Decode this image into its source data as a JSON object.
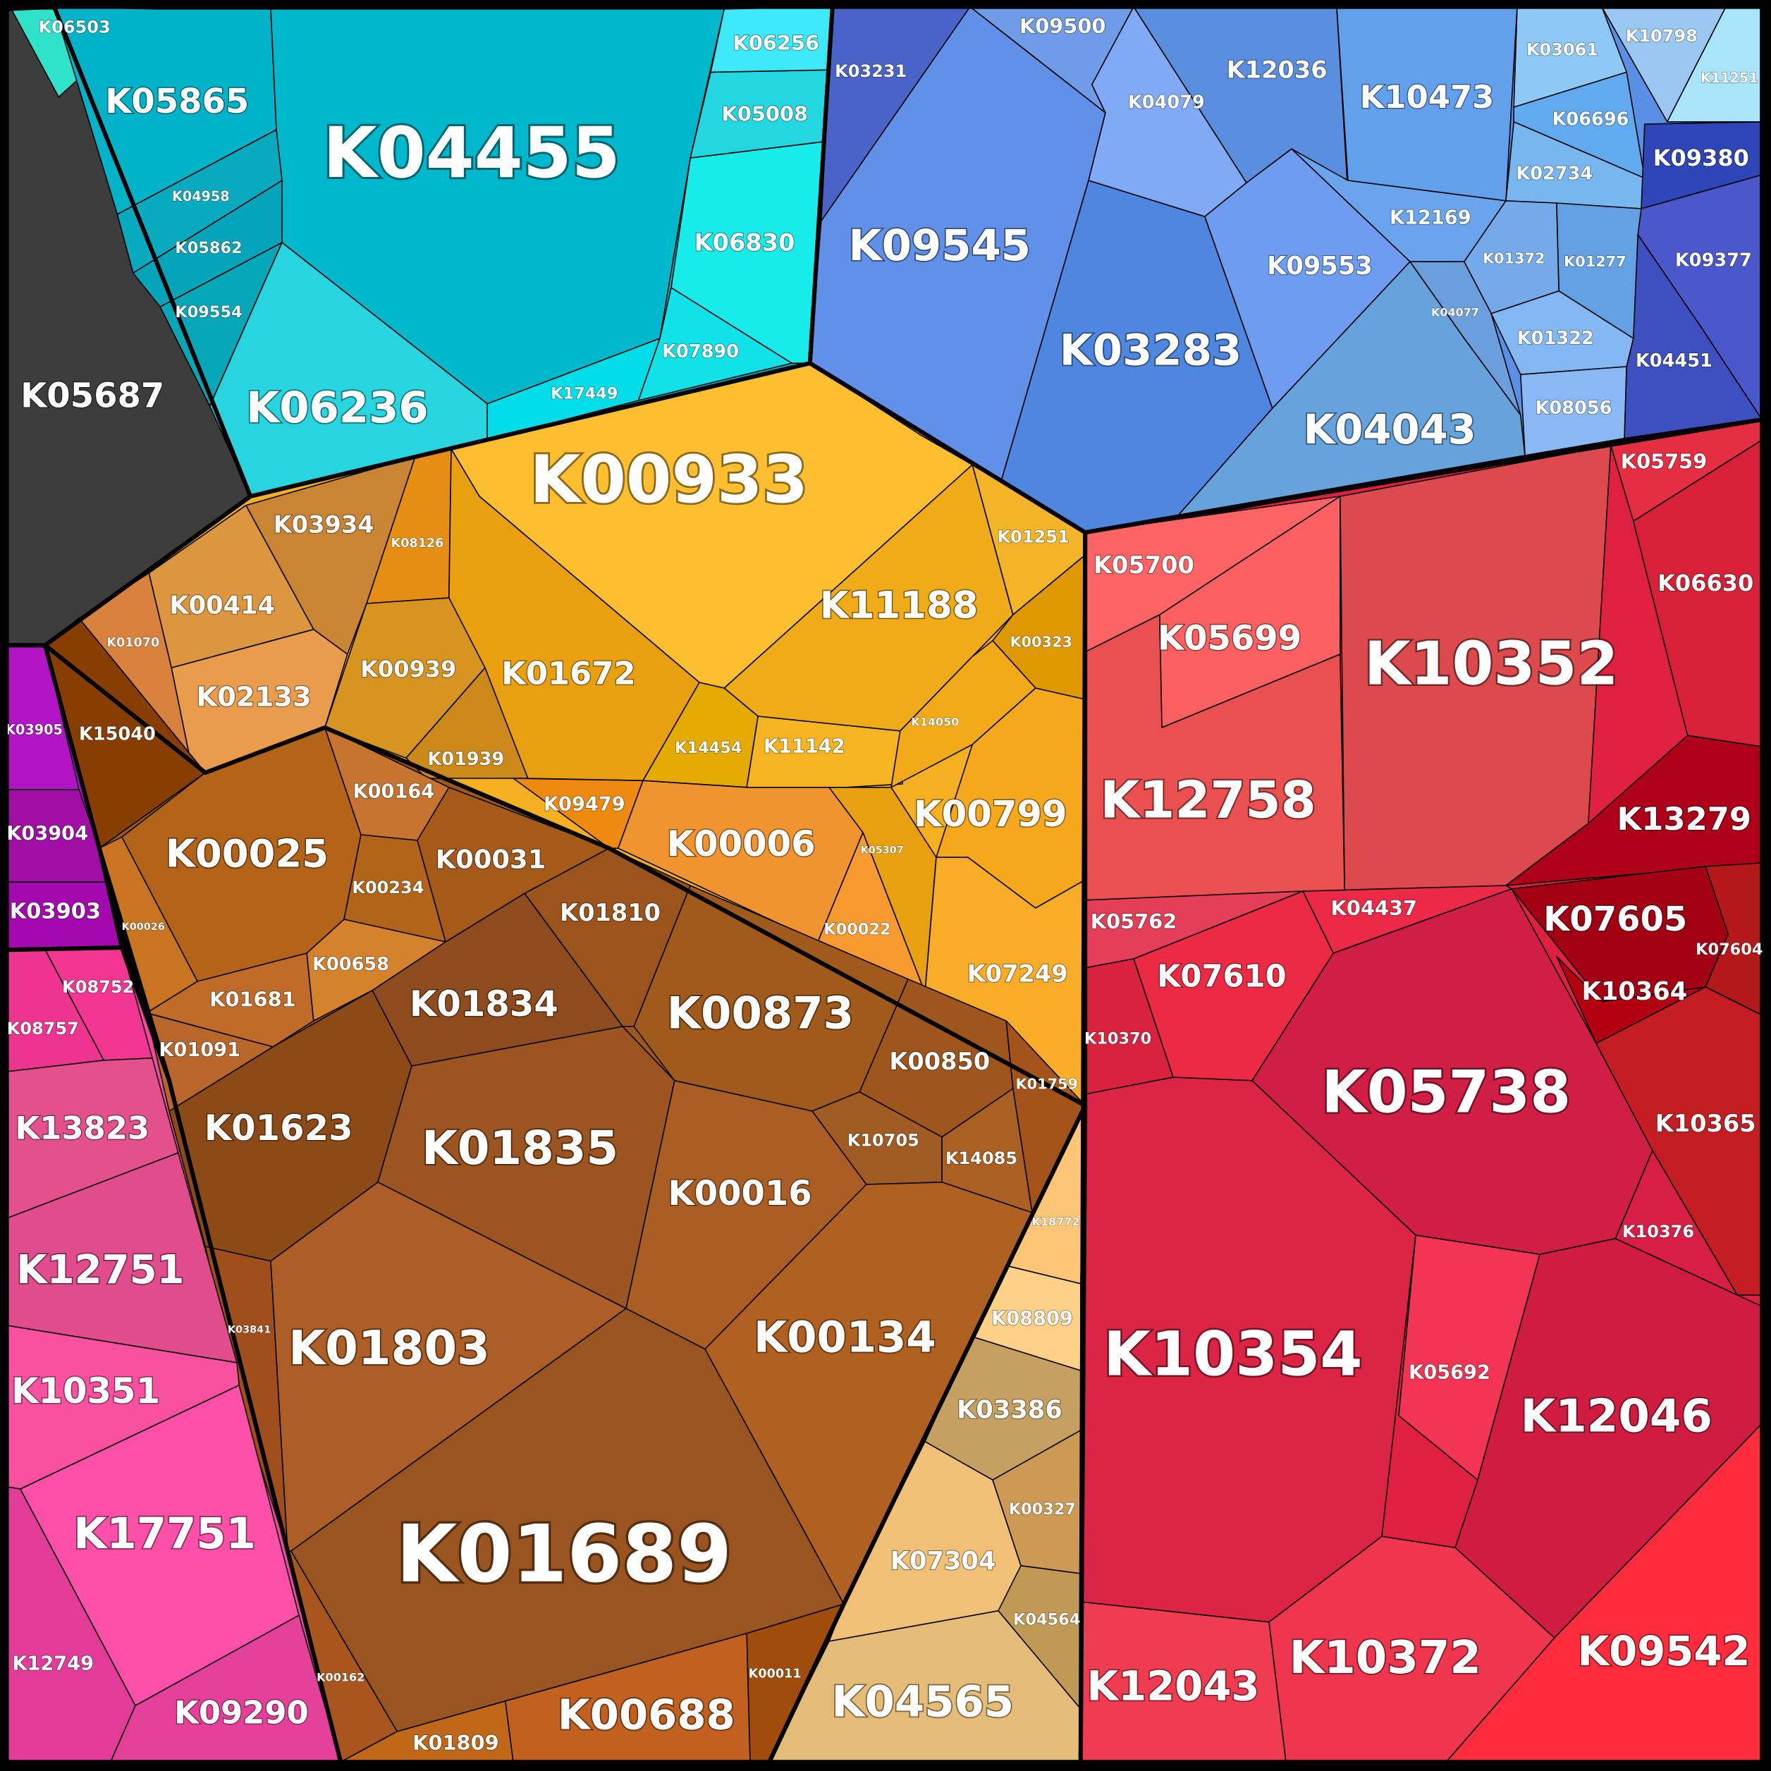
{
  "diagram": {
    "type": "voronoi-treemap",
    "groups": [
      {
        "id": "gray",
        "color": "#3d3d3d",
        "cells": [
          {
            "id": "K05687",
            "color": "#3d3d3d"
          }
        ]
      },
      {
        "id": "teal",
        "color": "#00b8c9",
        "cells": [
          {
            "id": "K06503",
            "color": "#2ee3c9"
          },
          {
            "id": "K05865",
            "color": "#00b3c8"
          },
          {
            "id": "K04455",
            "color": "#00b8cc"
          },
          {
            "id": "K04958",
            "color": "#07aabf"
          },
          {
            "id": "K05862",
            "color": "#04a5ba"
          },
          {
            "id": "K09554",
            "color": "#03a7b7"
          },
          {
            "id": "K06236",
            "color": "#28d4e0"
          },
          {
            "id": "K17449",
            "color": "#00dde8"
          },
          {
            "id": "K07890",
            "color": "#10e2e8"
          },
          {
            "id": "K06830",
            "color": "#18ecea"
          },
          {
            "id": "K05008",
            "color": "#24d6e0"
          },
          {
            "id": "K06256",
            "color": "#3de8f8"
          }
        ]
      },
      {
        "id": "blue",
        "color": "#5a8fe6",
        "cells": [
          {
            "id": "K03231",
            "color": "#4a63c8"
          },
          {
            "id": "K09545",
            "color": "#6090e8"
          },
          {
            "id": "K09500",
            "color": "#6e9ce8"
          },
          {
            "id": "K04079",
            "color": "#80aaf6"
          },
          {
            "id": "K12036",
            "color": "#5a8ede"
          },
          {
            "id": "K10473",
            "color": "#62a0ec"
          },
          {
            "id": "K03061",
            "color": "#8ec8f6"
          },
          {
            "id": "K10798",
            "color": "#9ac8f2"
          },
          {
            "id": "K11251",
            "color": "#a8e4fa"
          },
          {
            "id": "K06696",
            "color": "#62aaf0"
          },
          {
            "id": "K02734",
            "color": "#78b6f0"
          },
          {
            "id": "K12169",
            "color": "#6aa4ec"
          },
          {
            "id": "K09553",
            "color": "#6e9cf0"
          },
          {
            "id": "K03283",
            "color": "#4e86e0"
          },
          {
            "id": "K01372",
            "color": "#74aaea"
          },
          {
            "id": "K01277",
            "color": "#64a0e4"
          },
          {
            "id": "K04077",
            "color": "#6a9edc"
          },
          {
            "id": "K01322",
            "color": "#84b8f4"
          },
          {
            "id": "K04043",
            "color": "#66a2dc"
          },
          {
            "id": "K08056",
            "color": "#8ab8f4"
          },
          {
            "id": "K09380",
            "color": "#2e46b8"
          },
          {
            "id": "K09377",
            "color": "#4a58cc"
          },
          {
            "id": "K04451",
            "color": "#3e50c0"
          }
        ]
      },
      {
        "id": "orange",
        "color": "#f4b020",
        "cells": [
          {
            "id": "K00933",
            "color": "#fdbe30"
          },
          {
            "id": "K11188",
            "color": "#f0ac18"
          },
          {
            "id": "K01251",
            "color": "#f4b428"
          },
          {
            "id": "K00323",
            "color": "#e09800"
          },
          {
            "id": "K08126",
            "color": "#e68e14"
          },
          {
            "id": "K01672",
            "color": "#e8a010"
          },
          {
            "id": "K00939",
            "color": "#d89420"
          },
          {
            "id": "K01939",
            "color": "#cc8818"
          },
          {
            "id": "K14454",
            "color": "#e4aa00"
          },
          {
            "id": "K11142",
            "color": "#f6b422"
          },
          {
            "id": "K14050",
            "color": "#f2aa18"
          },
          {
            "id": "K00799",
            "color": "#f6a81c"
          },
          {
            "id": "K09479",
            "color": "#ee8a10"
          },
          {
            "id": "K00006",
            "color": "#f09430"
          },
          {
            "id": "K05307",
            "color": "#e8a010"
          },
          {
            "id": "K00022",
            "color": "#f89a30"
          },
          {
            "id": "K07249",
            "color": "#f8ac28"
          }
        ]
      },
      {
        "id": "brown",
        "color": "#a0581e",
        "cells": [
          {
            "id": "K03934",
            "color": "#c98434"
          },
          {
            "id": "K00414",
            "color": "#dc9640"
          },
          {
            "id": "K01070",
            "color": "#d8823e"
          },
          {
            "id": "K02133",
            "color": "#e89c4c"
          },
          {
            "id": "K15040",
            "color": "#883e00"
          },
          {
            "id": "K00025",
            "color": "#b46418"
          },
          {
            "id": "K00164",
            "color": "#c67430"
          },
          {
            "id": "K00031",
            "color": "#a65a1a"
          },
          {
            "id": "K00234",
            "color": "#b26418"
          },
          {
            "id": "K00026",
            "color": "#c87420"
          },
          {
            "id": "K01681",
            "color": "#c06c28"
          },
          {
            "id": "K00658",
            "color": "#d4822c"
          },
          {
            "id": "K01091",
            "color": "#b8662a"
          },
          {
            "id": "K01810",
            "color": "#9a541c"
          },
          {
            "id": "K01834",
            "color": "#8e4c1e"
          },
          {
            "id": "K00873",
            "color": "#a05a1c"
          },
          {
            "id": "K00850",
            "color": "#9e561c"
          },
          {
            "id": "K01759",
            "color": "#a4541a"
          },
          {
            "id": "K01623",
            "color": "#8c4a16"
          },
          {
            "id": "K01835",
            "color": "#9c5420"
          },
          {
            "id": "K10705",
            "color": "#a05c22"
          },
          {
            "id": "K14085",
            "color": "#aa6022"
          },
          {
            "id": "K00016",
            "color": "#aa5e24"
          },
          {
            "id": "K03841",
            "color": "#a04e1c"
          },
          {
            "id": "K01803",
            "color": "#ac5e26"
          },
          {
            "id": "K00134",
            "color": "#b06020"
          },
          {
            "id": "K01689",
            "color": "#9a5420"
          },
          {
            "id": "K00162",
            "color": "#a8561e"
          },
          {
            "id": "K01809",
            "color": "#c06818"
          },
          {
            "id": "K00688",
            "color": "#c26020"
          },
          {
            "id": "K00011",
            "color": "#a04c0c"
          }
        ]
      },
      {
        "id": "tan",
        "color": "#e0b060",
        "cells": [
          {
            "id": "K18772",
            "color": "#fdc676"
          },
          {
            "id": "K08809",
            "color": "#fdd088"
          },
          {
            "id": "K03386",
            "color": "#c6a060"
          },
          {
            "id": "K00327",
            "color": "#cc9a54"
          },
          {
            "id": "K07304",
            "color": "#f0c076"
          },
          {
            "id": "K04564",
            "color": "#c09a54"
          },
          {
            "id": "K04565",
            "color": "#e4bc78"
          }
        ]
      },
      {
        "id": "magenta",
        "color": "#b010c0",
        "cells": [
          {
            "id": "K03905",
            "color": "#b014c4"
          },
          {
            "id": "K03904",
            "color": "#a00ea6"
          },
          {
            "id": "K03903",
            "color": "#a608b0"
          }
        ]
      },
      {
        "id": "pink",
        "color": "#f04aa0",
        "cells": [
          {
            "id": "K08752",
            "color": "#f23692"
          },
          {
            "id": "K08757",
            "color": "#ec3490"
          },
          {
            "id": "K13823",
            "color": "#e4508c"
          },
          {
            "id": "K12751",
            "color": "#e04c8c"
          },
          {
            "id": "K10351",
            "color": "#fa50a0"
          },
          {
            "id": "K17751",
            "color": "#fe50a8"
          },
          {
            "id": "K12749",
            "color": "#e23c98"
          },
          {
            "id": "K09290",
            "color": "#e4409a"
          }
        ]
      },
      {
        "id": "red",
        "color": "#e02040",
        "cells": [
          {
            "id": "K05700",
            "color": "#fe6464"
          },
          {
            "id": "K05699",
            "color": "#fc6060"
          },
          {
            "id": "K10352",
            "color": "#dc4a4e"
          },
          {
            "id": "K05759",
            "color": "#e62e42"
          },
          {
            "id": "K06630",
            "color": "#d82038"
          },
          {
            "id": "K12758",
            "color": "#ea5050"
          },
          {
            "id": "K13279",
            "color": "#ae0018"
          },
          {
            "id": "K05762",
            "color": "#e43e58"
          },
          {
            "id": "K04437",
            "color": "#ec2a48"
          },
          {
            "id": "K07610",
            "color": "#ec2a44"
          },
          {
            "id": "K07605",
            "color": "#a40014"
          },
          {
            "id": "K07604",
            "color": "#b41818"
          },
          {
            "id": "K10364",
            "color": "#b20010"
          },
          {
            "id": "K10370",
            "color": "#d8223e"
          },
          {
            "id": "K05738",
            "color": "#d01e44"
          },
          {
            "id": "K10365",
            "color": "#c41e22"
          },
          {
            "id": "K10376",
            "color": "#d81e44"
          },
          {
            "id": "K10354",
            "color": "#dc2444"
          },
          {
            "id": "K05692",
            "color": "#f43454"
          },
          {
            "id": "K12046",
            "color": "#d01c40"
          },
          {
            "id": "K12043",
            "color": "#f03c50"
          },
          {
            "id": "K10372",
            "color": "#f0364e"
          },
          {
            "id": "K09542",
            "color": "#fe2c3c"
          }
        ]
      }
    ]
  }
}
